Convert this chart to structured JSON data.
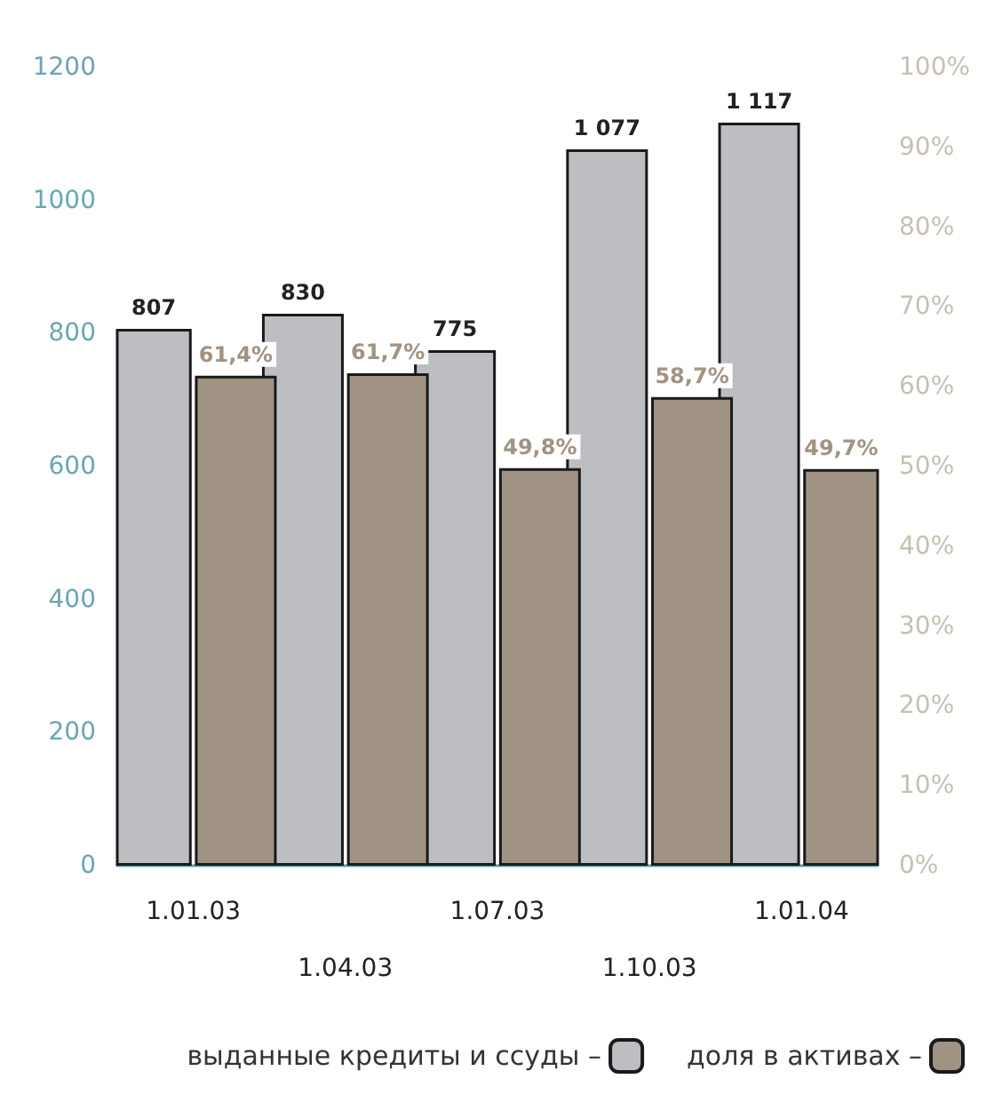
{
  "chart_data": {
    "type": "bar",
    "categories": [
      "1.01.03",
      "1.04.03",
      "1.07.03",
      "1.10.03",
      "1.01.04"
    ],
    "series": [
      {
        "name": "выданные кредиты и ссуды –",
        "color": "#bdbec2",
        "values": [
          807,
          830,
          775,
          1077,
          1117
        ],
        "value_labels": [
          "807",
          "830",
          "775",
          "1 077",
          "1 117"
        ]
      },
      {
        "name": "доля в активах –",
        "color": "#a09383",
        "axis": "y2",
        "values": [
          61.4,
          61.7,
          49.8,
          58.7,
          49.7
        ],
        "value_labels": [
          "61,4%",
          "61,7%",
          "49,8%",
          "58,7%",
          "49,7%"
        ]
      }
    ],
    "ylim": [
      0,
      1200
    ],
    "yticks": [
      0,
      200,
      400,
      600,
      800,
      1000,
      1200
    ],
    "y2lim": [
      0,
      100
    ],
    "y2ticks": [
      {
        "value": 0,
        "label": "0%"
      },
      {
        "value": 10,
        "label": "10%"
      },
      {
        "value": 20,
        "label": "20%"
      },
      {
        "value": 30,
        "label": "30%"
      },
      {
        "value": 40,
        "label": "40%"
      },
      {
        "value": 50,
        "label": "50%"
      },
      {
        "value": 60,
        "label": "60%"
      },
      {
        "value": 70,
        "label": "70%"
      },
      {
        "value": 80,
        "label": "80%"
      },
      {
        "value": 90,
        "label": "90%"
      },
      {
        "value": 100,
        "label": "100%"
      }
    ],
    "grid": false,
    "legend": "bottom right"
  }
}
